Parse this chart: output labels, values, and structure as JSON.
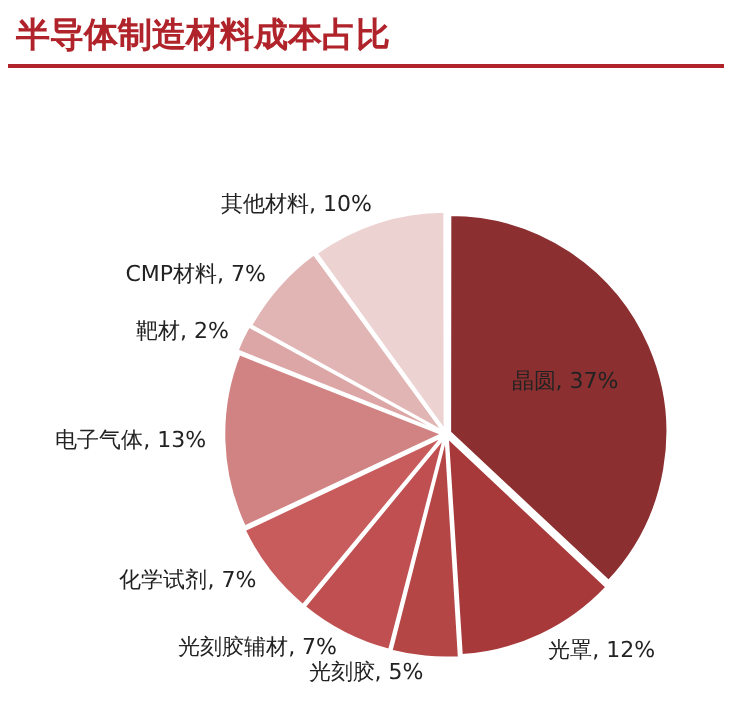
{
  "chart_data": {
    "type": "pie",
    "title": "半导体制造材料成本占比",
    "categories": [
      "晶圆",
      "光罩",
      "光刻胶",
      "光刻胶辅材",
      "化学试剂",
      "电子气体",
      "靶材",
      "CMP材料",
      "其他材料"
    ],
    "values": [
      37,
      12,
      5,
      7,
      7,
      13,
      2,
      7,
      10
    ],
    "value_labels": [
      "37%",
      "12%",
      "5%",
      "7%",
      "7%",
      "13%",
      "2%",
      "7%",
      "10%"
    ],
    "colors": [
      "#8c2f30",
      "#a8393a",
      "#b54646",
      "#bf4f50",
      "#c85c5c",
      "#d18282",
      "#dca6a6",
      "#e2b5b5",
      "#edd2d2"
    ],
    "legend": false
  }
}
